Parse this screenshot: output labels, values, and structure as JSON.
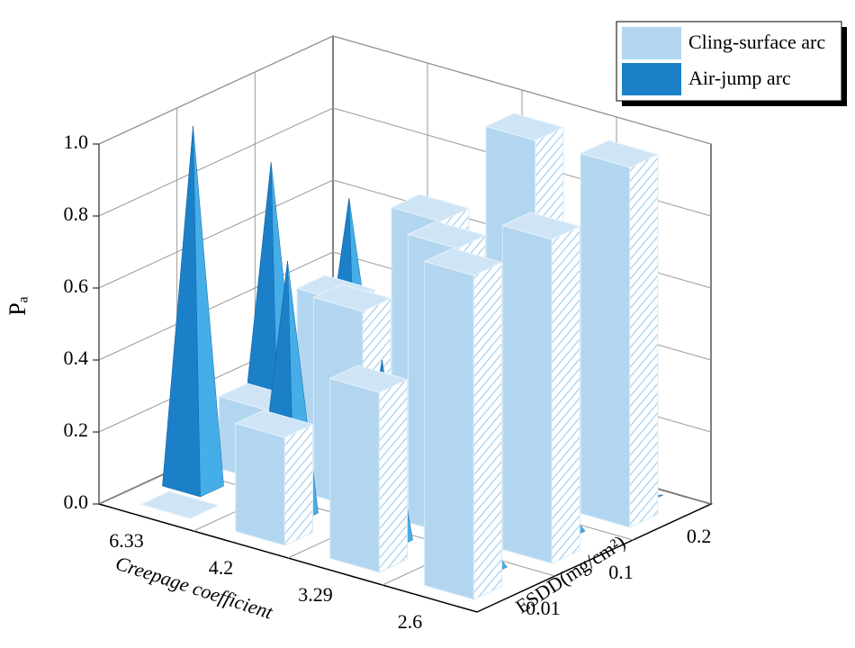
{
  "chart_data": {
    "type": "bar3d",
    "categories": [
      "6.33",
      "4.2",
      "3.29",
      "2.6"
    ],
    "esdd_categories": [
      "0.01",
      "0.1",
      "0.2"
    ],
    "x_label": "Creepage coefficient",
    "y_label": "ESDD(mg/cm²)",
    "z_label": "Pₐ",
    "zlim": [
      0,
      1
    ],
    "zticks": [
      {
        "value": 0,
        "label": "0.0"
      },
      0.2,
      0.4,
      0.6,
      0.8,
      {
        "value": 1,
        "label": "1.0"
      }
    ],
    "grid": true,
    "legend": "upper right",
    "series": [
      {
        "name": "Cling-surface arc",
        "color": "#b3d6f0",
        "shape": "box",
        "values": [
          [
            0,
            0.3,
            0.5,
            0.9
          ],
          [
            0.2,
            0.55,
            0.8,
            0.9
          ],
          [
            0.4,
            0.7,
            1.0,
            1.0
          ]
        ]
      },
      {
        "name": "Air-jump arc",
        "color": "#1c80c8",
        "shape": "pyramid",
        "values": [
          [
            1.0,
            0.7,
            0.5,
            0.1
          ],
          [
            0.8,
            0.45,
            0.2,
            0.1
          ],
          [
            0.6,
            0.3,
            0,
            0
          ]
        ]
      }
    ]
  }
}
